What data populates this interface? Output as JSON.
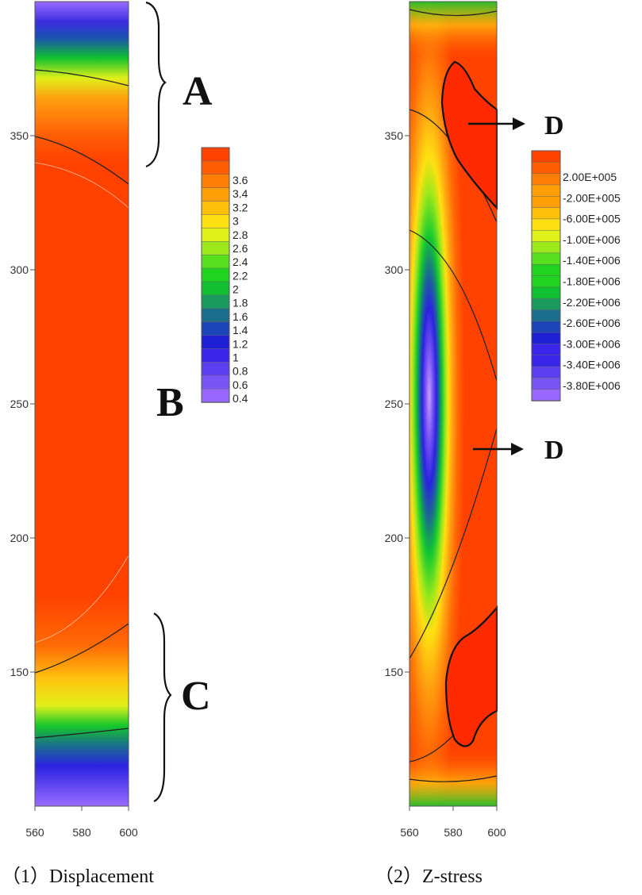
{
  "chart_data": [
    {
      "type": "heatmap",
      "title": "Displacement",
      "caption_num": "（1）",
      "x_ticks": [
        "560",
        "580",
        "600"
      ],
      "y_ticks": [
        "150",
        "200",
        "250",
        "300",
        "350"
      ],
      "xlim": [
        560,
        600
      ],
      "ylim": [
        100,
        400
      ],
      "colorbar_labels": [
        "3.6",
        "3.4",
        "3.2",
        "3",
        "2.8",
        "2.6",
        "2.4",
        "2.2",
        "2",
        "1.8",
        "1.6",
        "1.4",
        "1.2",
        "1",
        "0.8",
        "0.6",
        "0.4"
      ],
      "colorbar_range": [
        0.4,
        3.75
      ],
      "annotations": [
        {
          "label": "A",
          "region_y": [
            337,
            400
          ]
        },
        {
          "label": "B",
          "region_y": [
            160,
            337
          ]
        },
        {
          "label": "C",
          "region_y": [
            100,
            160
          ]
        }
      ]
    },
    {
      "type": "heatmap",
      "title": "Z-stress",
      "caption_num": "（2）",
      "x_ticks": [
        "560",
        "580",
        "600"
      ],
      "y_ticks": [
        "150",
        "200",
        "250",
        "300",
        "350"
      ],
      "xlim": [
        560,
        600
      ],
      "ylim": [
        100,
        400
      ],
      "colorbar_labels": [
        "2.00E+005",
        "-2.00E+005",
        "-6.00E+005",
        "-1.00E+006",
        "-1.40E+006",
        "-1.80E+006",
        "-2.20E+006",
        "-2.60E+006",
        "-3.00E+006",
        "-3.40E+006",
        "-3.80E+006"
      ],
      "colorbar_range": [
        -4000000,
        400000
      ],
      "annotations": [
        {
          "label": "D",
          "region_y": [
            350,
            400
          ]
        },
        {
          "label": "D",
          "region_y": [
            100,
            150
          ]
        }
      ]
    }
  ],
  "palette": [
    "#9966ff",
    "#7a55f5",
    "#5c3ff0",
    "#3a26e8",
    "#1f1fd6",
    "#1c46b8",
    "#1b6e8c",
    "#1a9a5c",
    "#10c030",
    "#1fd41f",
    "#56e01e",
    "#9ce81b",
    "#dff01a",
    "#ffe012",
    "#ffc00c",
    "#ff9f08",
    "#ff7f04",
    "#ff5f02",
    "#ff4200"
  ]
}
